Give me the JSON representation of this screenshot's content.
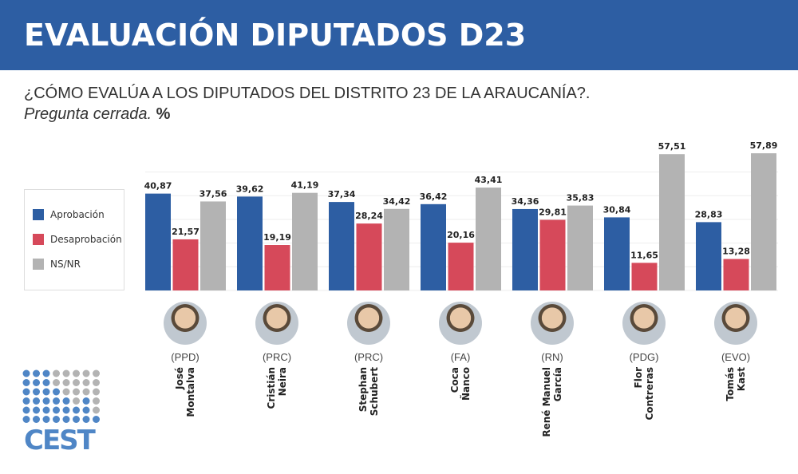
{
  "header": {
    "title": "EVALUACIÓN DIPUTADOS D23"
  },
  "question": {
    "text": "¿CÓMO EVALÚA A LOS DIPUTADOS DEL DISTRITO 23 DE LA ARAUCANÍA?.",
    "note": "Pregunta cerrada.",
    "unit": "%"
  },
  "logo": {
    "text": "CEST"
  },
  "colors": {
    "aprobacion": "#2d5ea3",
    "desaprobacion": "#d6495a",
    "nsnr": "#b3b3b3",
    "header": "#2d5ea3"
  },
  "chart_data": {
    "type": "bar",
    "categories": [
      "José Montalva",
      "Cristián Neira",
      "Stephan Schubert",
      "Coca Ñanco",
      "René Manuel García",
      "Flor Contreras",
      "Tomás Kast"
    ],
    "name_lines": [
      [
        "José",
        "Montalva"
      ],
      [
        "Cristián",
        "Neira"
      ],
      [
        "Stephan",
        "Schubert"
      ],
      [
        "Coca",
        "Ñanco"
      ],
      [
        "René Manuel",
        "García"
      ],
      [
        "Flor",
        "Contreras"
      ],
      [
        "Tomás",
        "Kast"
      ]
    ],
    "parties": [
      "(PPD)",
      "(PRC)",
      "(PRC)",
      "(FA)",
      "(RN)",
      "(PDG)",
      "(EVO)"
    ],
    "series": [
      {
        "name": "Aprobación",
        "values": [
          40.87,
          39.62,
          37.34,
          36.42,
          34.36,
          30.84,
          28.83
        ]
      },
      {
        "name": "Desaprobación",
        "values": [
          21.57,
          19.19,
          28.24,
          20.16,
          29.81,
          11.65,
          13.28
        ]
      },
      {
        "name": "NS/NR",
        "values": [
          37.56,
          41.19,
          34.42,
          43.41,
          35.83,
          57.51,
          57.89
        ]
      }
    ],
    "ylim": [
      0,
      60
    ],
    "grid": true,
    "legend_position": "left"
  }
}
